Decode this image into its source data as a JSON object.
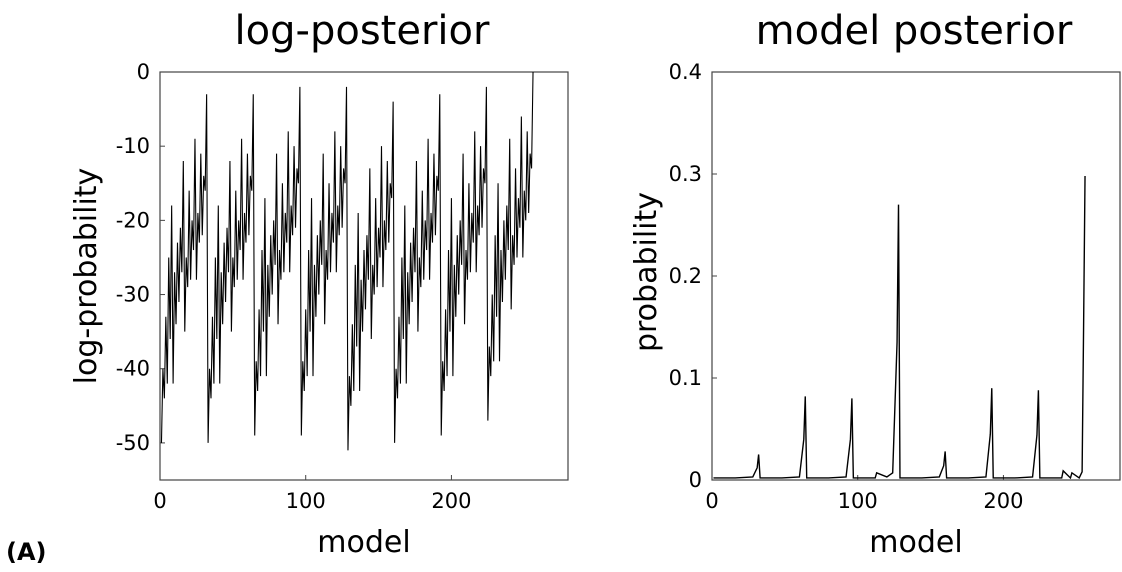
{
  "panel_label": "(A)",
  "chart_data": [
    {
      "type": "line",
      "title": "log-posterior",
      "xlabel": "model",
      "ylabel": "log-probability",
      "xlim": [
        0,
        280
      ],
      "ylim": [
        -55,
        0
      ],
      "xticks": [
        0,
        100,
        200
      ],
      "yticks": [
        0,
        -10,
        -20,
        -30,
        -40,
        -50
      ],
      "grid": false,
      "line_color": "#000000",
      "series": [
        {
          "x": [
            1,
            2,
            3,
            4,
            5,
            6,
            7,
            8,
            9,
            10,
            11,
            12,
            13,
            14,
            15,
            16,
            17,
            18,
            19,
            20,
            21,
            22,
            23,
            24,
            25,
            26,
            27,
            28,
            29,
            30,
            31,
            32,
            33,
            34,
            35,
            36,
            37,
            38,
            39,
            40,
            41,
            42,
            43,
            44,
            45,
            46,
            47,
            48,
            49,
            50,
            51,
            52,
            53,
            54,
            55,
            56,
            57,
            58,
            59,
            60,
            61,
            62,
            63,
            64,
            65,
            66,
            67,
            68,
            69,
            70,
            71,
            72,
            73,
            74,
            75,
            76,
            77,
            78,
            79,
            80,
            81,
            82,
            83,
            84,
            85,
            86,
            87,
            88,
            89,
            90,
            91,
            92,
            93,
            94,
            95,
            96,
            97,
            98,
            99,
            100,
            101,
            102,
            103,
            104,
            105,
            106,
            107,
            108,
            109,
            110,
            111,
            112,
            113,
            114,
            115,
            116,
            117,
            118,
            119,
            120,
            121,
            122,
            123,
            124,
            125,
            126,
            127,
            128,
            129,
            130,
            131,
            132,
            133,
            134,
            135,
            136,
            137,
            138,
            139,
            140,
            141,
            142,
            143,
            144,
            145,
            146,
            147,
            148,
            149,
            150,
            151,
            152,
            153,
            154,
            155,
            156,
            157,
            158,
            159,
            160,
            161,
            162,
            163,
            164,
            165,
            166,
            167,
            168,
            169,
            170,
            171,
            172,
            173,
            174,
            175,
            176,
            177,
            178,
            179,
            180,
            181,
            182,
            183,
            184,
            185,
            186,
            187,
            188,
            189,
            190,
            191,
            192,
            193,
            194,
            195,
            196,
            197,
            198,
            199,
            200,
            201,
            202,
            203,
            204,
            205,
            206,
            207,
            208,
            209,
            210,
            211,
            212,
            213,
            214,
            215,
            216,
            217,
            218,
            219,
            220,
            221,
            222,
            223,
            224,
            225,
            226,
            227,
            228,
            229,
            230,
            231,
            232,
            233,
            234,
            235,
            236,
            237,
            238,
            239,
            240,
            241,
            242,
            243,
            244,
            245,
            246,
            247,
            248,
            249,
            250,
            251,
            252,
            253,
            254,
            255,
            256
          ],
          "y": [
            -50,
            -40,
            -44,
            -33,
            -42,
            -25,
            -36,
            -18,
            -42,
            -27,
            -34,
            -23,
            -31,
            -21,
            -27,
            -12,
            -35,
            -25,
            -29,
            -16,
            -28,
            -20,
            -24,
            -9,
            -28,
            -19,
            -23,
            -11,
            -22,
            -14,
            -16,
            -3,
            -50,
            -40,
            -44,
            -33,
            -42,
            -25,
            -36,
            -18,
            -42,
            -27,
            -34,
            -23,
            -31,
            -21,
            -27,
            -12,
            -35,
            -25,
            -29,
            -16,
            -28,
            -20,
            -24,
            -9,
            -28,
            -19,
            -23,
            -11,
            -22,
            -14,
            -16,
            -3,
            -49,
            -39,
            -43,
            -32,
            -41,
            -24,
            -35,
            -17,
            -41,
            -26,
            -33,
            -22,
            -30,
            -20,
            -26,
            -11,
            -34,
            -24,
            -28,
            -15,
            -27,
            -19,
            -23,
            -8,
            -27,
            -18,
            -22,
            -10,
            -21,
            -13,
            -15,
            -2,
            -49,
            -39,
            -43,
            -32,
            -41,
            -24,
            -35,
            -17,
            -41,
            -26,
            -33,
            -22,
            -30,
            -20,
            -26,
            -11,
            -34,
            -24,
            -28,
            -15,
            -27,
            -19,
            -23,
            -8,
            -27,
            -18,
            -22,
            -10,
            -21,
            -13,
            -15,
            -2,
            -51,
            -41,
            -45,
            -34,
            -43,
            -26,
            -37,
            -19,
            -43,
            -28,
            -35,
            -24,
            -32,
            -22,
            -28,
            -13,
            -36,
            -26,
            -30,
            -17,
            -29,
            -21,
            -25,
            -10,
            -29,
            -20,
            -24,
            -12,
            -23,
            -15,
            -17,
            -4,
            -50,
            -40,
            -44,
            -33,
            -42,
            -25,
            -36,
            -18,
            -42,
            -27,
            -34,
            -23,
            -31,
            -21,
            -27,
            -12,
            -35,
            -25,
            -29,
            -16,
            -28,
            -20,
            -24,
            -9,
            -28,
            -19,
            -23,
            -11,
            -22,
            -14,
            -16,
            -3,
            -49,
            -39,
            -43,
            -32,
            -41,
            -24,
            -35,
            -17,
            -41,
            -26,
            -33,
            -22,
            -30,
            -20,
            -26,
            -11,
            -34,
            -24,
            -28,
            -15,
            -27,
            -19,
            -23,
            -8,
            -27,
            -18,
            -22,
            -10,
            -21,
            -13,
            -15,
            -2,
            -47,
            -37,
            -41,
            -30,
            -39,
            -22,
            -33,
            -15,
            -39,
            -24,
            -31,
            -20,
            -28,
            -18,
            -24,
            -9,
            -32,
            -22,
            -26,
            -13,
            -25,
            -17,
            -21,
            -6,
            -25,
            -16,
            -20,
            -8,
            -19,
            -11,
            -13,
            0
          ]
        }
      ]
    },
    {
      "type": "line",
      "title": "model posterior",
      "xlabel": "model",
      "ylabel": "probability",
      "xlim": [
        0,
        280
      ],
      "ylim": [
        0,
        0.4
      ],
      "xticks": [
        0,
        100,
        200
      ],
      "yticks": [
        0,
        0.1,
        0.2,
        0.3,
        0.4
      ],
      "grid": false,
      "line_color": "#000000",
      "series": [
        {
          "x": [
            1,
            16,
            28,
            31,
            32,
            33,
            34,
            48,
            60,
            63,
            64,
            65,
            66,
            80,
            92,
            95,
            96,
            97,
            98,
            112,
            113,
            120,
            124,
            127,
            128,
            129,
            130,
            144,
            156,
            159,
            160,
            161,
            162,
            176,
            188,
            191,
            192,
            193,
            194,
            208,
            220,
            223,
            224,
            225,
            226,
            240,
            241,
            246,
            247,
            252,
            254,
            255,
            256
          ],
          "y": [
            0.002,
            0.002,
            0.003,
            0.012,
            0.025,
            0.002,
            0.002,
            0.002,
            0.003,
            0.04,
            0.082,
            0.002,
            0.002,
            0.002,
            0.003,
            0.04,
            0.08,
            0.002,
            0.002,
            0.002,
            0.007,
            0.003,
            0.007,
            0.135,
            0.27,
            0.002,
            0.002,
            0.002,
            0.003,
            0.014,
            0.028,
            0.002,
            0.002,
            0.002,
            0.003,
            0.045,
            0.09,
            0.002,
            0.002,
            0.002,
            0.003,
            0.044,
            0.088,
            0.002,
            0.002,
            0.002,
            0.009,
            0.002,
            0.007,
            0.002,
            0.008,
            0.148,
            0.298
          ]
        }
      ]
    }
  ]
}
